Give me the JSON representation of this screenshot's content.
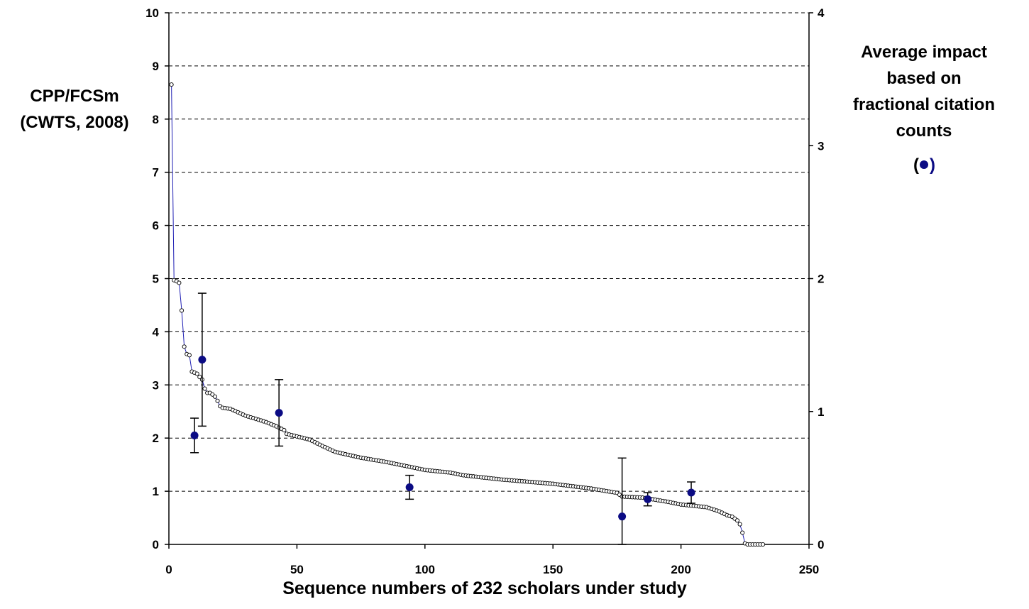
{
  "chart_data": {
    "type": "scatter",
    "xlabel": "Sequence numbers of 232 scholars under study",
    "ylabel_left_lines": [
      "CPP/FCSm",
      "(CWTS, 2008)"
    ],
    "ylabel_right_lines": [
      "Average impact",
      "based on",
      "fractional citation",
      "counts"
    ],
    "ylabel_right_marker_open": "(",
    "ylabel_right_marker_close": ")",
    "xlim": [
      0,
      250
    ],
    "ylim_left": [
      0,
      10
    ],
    "ylim_right": [
      0,
      4
    ],
    "x_ticks": [
      0,
      50,
      100,
      150,
      200,
      250
    ],
    "y_ticks_left": [
      0,
      1,
      2,
      3,
      4,
      5,
      6,
      7,
      8,
      9,
      10
    ],
    "y_ticks_right": [
      0,
      1,
      2,
      3,
      4
    ],
    "grid": "horizontal dashed at left-axis integer ticks",
    "series": [
      {
        "name": "CPP/FCSm (CWTS, 2008)",
        "axis": "left",
        "style": "open circles joined by thin blue line",
        "line_color": "#1f1fb4",
        "marker_color": "#000000",
        "anchors": [
          [
            1,
            8.65
          ],
          [
            2,
            4.97
          ],
          [
            3,
            4.95
          ],
          [
            4,
            4.92
          ],
          [
            5,
            4.4
          ],
          [
            6,
            3.72
          ],
          [
            7,
            3.58
          ],
          [
            8,
            3.56
          ],
          [
            9,
            3.25
          ],
          [
            10,
            3.23
          ],
          [
            11,
            3.21
          ],
          [
            12,
            3.15
          ],
          [
            13,
            3.1
          ],
          [
            14,
            2.93
          ],
          [
            15,
            2.85
          ],
          [
            16,
            2.85
          ],
          [
            17,
            2.82
          ],
          [
            18,
            2.78
          ],
          [
            19,
            2.7
          ],
          [
            20,
            2.6
          ],
          [
            21,
            2.57
          ],
          [
            24,
            2.55
          ],
          [
            30,
            2.42
          ],
          [
            38,
            2.3
          ],
          [
            42,
            2.22
          ],
          [
            45,
            2.15
          ],
          [
            46,
            2.08
          ],
          [
            55,
            1.97
          ],
          [
            60,
            1.85
          ],
          [
            65,
            1.74
          ],
          [
            75,
            1.63
          ],
          [
            85,
            1.55
          ],
          [
            95,
            1.45
          ],
          [
            100,
            1.4
          ],
          [
            110,
            1.35
          ],
          [
            115,
            1.3
          ],
          [
            130,
            1.22
          ],
          [
            150,
            1.14
          ],
          [
            165,
            1.05
          ],
          [
            175,
            0.97
          ],
          [
            177,
            0.9
          ],
          [
            185,
            0.88
          ],
          [
            195,
            0.8
          ],
          [
            200,
            0.75
          ],
          [
            210,
            0.7
          ],
          [
            215,
            0.62
          ],
          [
            218,
            0.55
          ],
          [
            220,
            0.52
          ],
          [
            222,
            0.45
          ],
          [
            223,
            0.38
          ],
          [
            224,
            0.22
          ],
          [
            225,
            0.02
          ],
          [
            226,
            0.0
          ],
          [
            232,
            0.0
          ]
        ]
      },
      {
        "name": "Average impact based on fractional citation counts",
        "axis": "right",
        "style": "filled dark-blue circles with error bars",
        "marker_color": "#0b0b84",
        "points": [
          {
            "x": 10,
            "y": 0.82,
            "low": 0.69,
            "high": 0.95
          },
          {
            "x": 13,
            "y": 1.39,
            "low": 0.89,
            "high": 1.89
          },
          {
            "x": 43,
            "y": 0.99,
            "low": 0.74,
            "high": 1.24
          },
          {
            "x": 94,
            "y": 0.43,
            "low": 0.34,
            "high": 0.52
          },
          {
            "x": 177,
            "y": 0.21,
            "low": 0.0,
            "high": 0.65
          },
          {
            "x": 187,
            "y": 0.34,
            "low": 0.29,
            "high": 0.39
          },
          {
            "x": 204,
            "y": 0.39,
            "low": 0.31,
            "high": 0.47
          }
        ]
      }
    ]
  }
}
